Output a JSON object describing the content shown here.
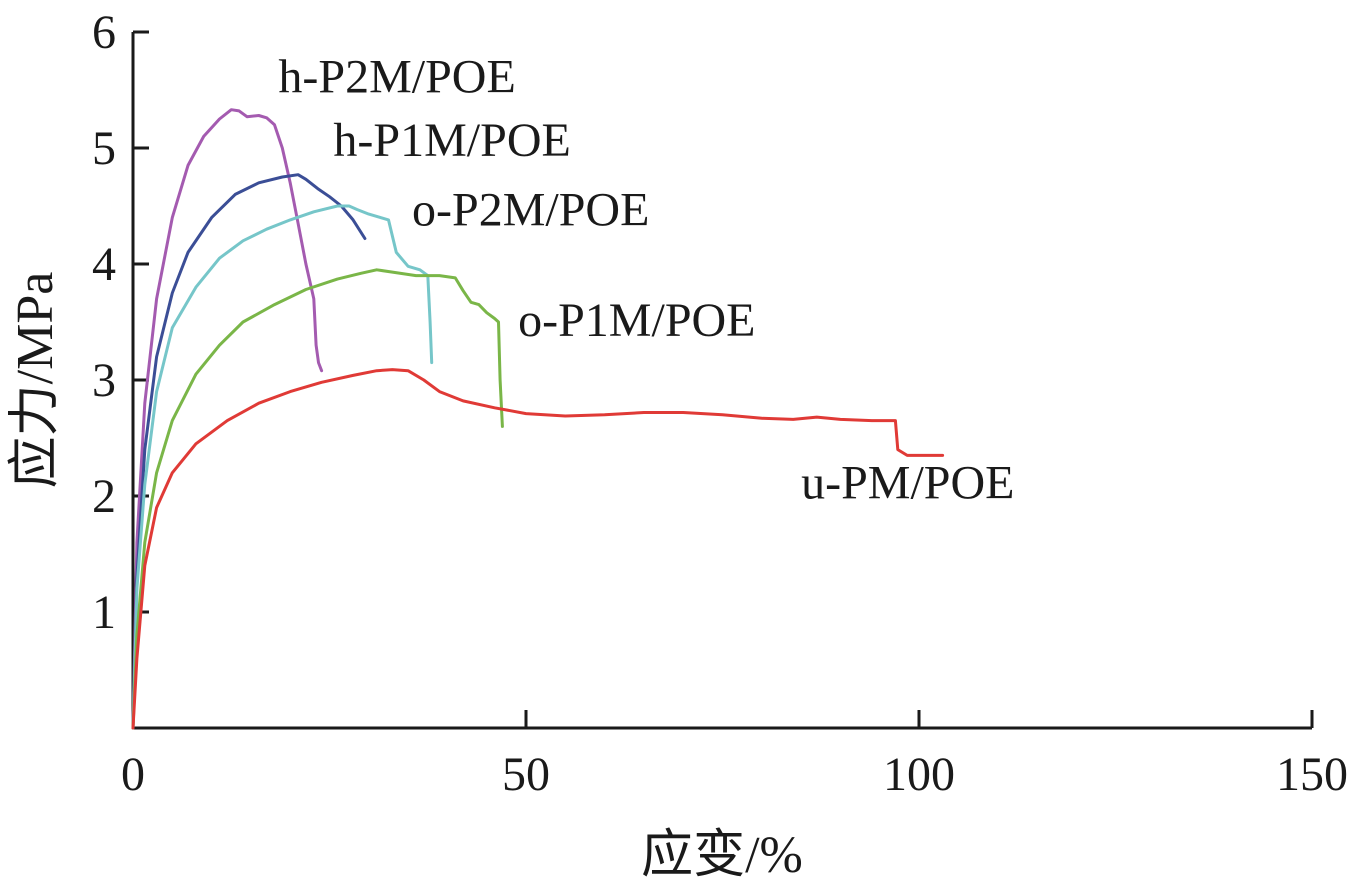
{
  "chart_data": {
    "type": "line",
    "title": "",
    "xlabel": "应变/%",
    "ylabel": "应力/MPa",
    "xlim": [
      0,
      150
    ],
    "ylim": [
      0,
      6
    ],
    "x_ticks": [
      0,
      50,
      100,
      150
    ],
    "x_tick_labels": [
      "0",
      "50",
      "100",
      "150"
    ],
    "y_ticks": [
      1,
      2,
      3,
      4,
      5,
      6
    ],
    "y_tick_labels": [
      "1",
      "2",
      "3",
      "4",
      "5",
      "6"
    ],
    "grid": false,
    "legend": "none",
    "series": [
      {
        "name": "h-P2M/POE",
        "color": "#a45bb0",
        "points": [
          [
            0,
            0
          ],
          [
            0.5,
            1.6
          ],
          [
            1.5,
            2.8
          ],
          [
            3,
            3.7
          ],
          [
            5,
            4.4
          ],
          [
            7,
            4.85
          ],
          [
            9,
            5.1
          ],
          [
            11,
            5.25
          ],
          [
            12.5,
            5.33
          ],
          [
            13.5,
            5.32
          ],
          [
            14.5,
            5.27
          ],
          [
            16,
            5.28
          ],
          [
            17,
            5.26
          ],
          [
            18,
            5.2
          ],
          [
            19,
            5.0
          ],
          [
            20,
            4.7
          ],
          [
            21,
            4.35
          ],
          [
            22,
            4.0
          ],
          [
            23,
            3.7
          ],
          [
            23.3,
            3.3
          ],
          [
            23.6,
            3.15
          ],
          [
            24,
            3.08
          ]
        ]
      },
      {
        "name": "h-P1M/POE",
        "color": "#3b4e96",
        "points": [
          [
            0,
            0
          ],
          [
            0.5,
            1.3
          ],
          [
            1.5,
            2.4
          ],
          [
            3,
            3.2
          ],
          [
            5,
            3.75
          ],
          [
            7,
            4.1
          ],
          [
            10,
            4.4
          ],
          [
            13,
            4.6
          ],
          [
            16,
            4.7
          ],
          [
            19,
            4.75
          ],
          [
            21,
            4.77
          ],
          [
            22,
            4.73
          ],
          [
            23.5,
            4.65
          ],
          [
            25,
            4.58
          ],
          [
            26.5,
            4.5
          ],
          [
            28,
            4.38
          ],
          [
            29.5,
            4.22
          ]
        ]
      },
      {
        "name": "o-P2M/POE",
        "color": "#76c6c9",
        "points": [
          [
            0,
            0
          ],
          [
            0.5,
            1.2
          ],
          [
            1.5,
            2.1
          ],
          [
            3,
            2.9
          ],
          [
            5,
            3.45
          ],
          [
            8,
            3.8
          ],
          [
            11,
            4.05
          ],
          [
            14,
            4.2
          ],
          [
            17,
            4.3
          ],
          [
            20,
            4.38
          ],
          [
            23,
            4.45
          ],
          [
            26,
            4.5
          ],
          [
            27.5,
            4.5
          ],
          [
            28.5,
            4.47
          ],
          [
            30,
            4.43
          ],
          [
            31.5,
            4.4
          ],
          [
            32.5,
            4.38
          ],
          [
            33.5,
            4.1
          ],
          [
            35,
            3.98
          ],
          [
            36.5,
            3.95
          ],
          [
            37.5,
            3.9
          ],
          [
            37.8,
            3.5
          ],
          [
            38,
            3.15
          ]
        ]
      },
      {
        "name": "o-P1M/POE",
        "color": "#7ab648",
        "points": [
          [
            0,
            0
          ],
          [
            0.5,
            0.8
          ],
          [
            1.5,
            1.6
          ],
          [
            3,
            2.2
          ],
          [
            5,
            2.65
          ],
          [
            8,
            3.05
          ],
          [
            11,
            3.3
          ],
          [
            14,
            3.5
          ],
          [
            18,
            3.65
          ],
          [
            22,
            3.78
          ],
          [
            26,
            3.87
          ],
          [
            29,
            3.92
          ],
          [
            31,
            3.95
          ],
          [
            33,
            3.93
          ],
          [
            36,
            3.9
          ],
          [
            39,
            3.9
          ],
          [
            41,
            3.88
          ],
          [
            42,
            3.77
          ],
          [
            43,
            3.67
          ],
          [
            44,
            3.65
          ],
          [
            45,
            3.58
          ],
          [
            46,
            3.53
          ],
          [
            46.5,
            3.5
          ],
          [
            46.7,
            3.0
          ],
          [
            47,
            2.6
          ]
        ]
      },
      {
        "name": "u-PM/POE",
        "color": "#e03a36",
        "points": [
          [
            0,
            0
          ],
          [
            0.5,
            0.6
          ],
          [
            1.5,
            1.4
          ],
          [
            3,
            1.9
          ],
          [
            5,
            2.2
          ],
          [
            8,
            2.45
          ],
          [
            12,
            2.65
          ],
          [
            16,
            2.8
          ],
          [
            20,
            2.9
          ],
          [
            24,
            2.98
          ],
          [
            28,
            3.04
          ],
          [
            31,
            3.08
          ],
          [
            33,
            3.09
          ],
          [
            35,
            3.08
          ],
          [
            37,
            3.0
          ],
          [
            39,
            2.9
          ],
          [
            42,
            2.82
          ],
          [
            46,
            2.76
          ],
          [
            50,
            2.71
          ],
          [
            55,
            2.69
          ],
          [
            60,
            2.7
          ],
          [
            65,
            2.72
          ],
          [
            70,
            2.72
          ],
          [
            75,
            2.7
          ],
          [
            80,
            2.67
          ],
          [
            84,
            2.66
          ],
          [
            87,
            2.68
          ],
          [
            90,
            2.66
          ],
          [
            94,
            2.65
          ],
          [
            97,
            2.65
          ],
          [
            97.3,
            2.4
          ],
          [
            98.5,
            2.35
          ],
          [
            100,
            2.35
          ],
          [
            102,
            2.35
          ],
          [
            103,
            2.35
          ]
        ]
      }
    ],
    "annotations": [
      {
        "text": "h-P2M/POE",
        "x": 18.5,
        "y": 5.48
      },
      {
        "text": "h-P1M/POE",
        "x": 25.5,
        "y": 4.93
      },
      {
        "text": "o-P2M/POE",
        "x": 35.5,
        "y": 4.33
      },
      {
        "text": "o-P1M/POE",
        "x": 49,
        "y": 3.38
      },
      {
        "text": "u-PM/POE",
        "x": 85,
        "y": 1.98
      }
    ]
  }
}
